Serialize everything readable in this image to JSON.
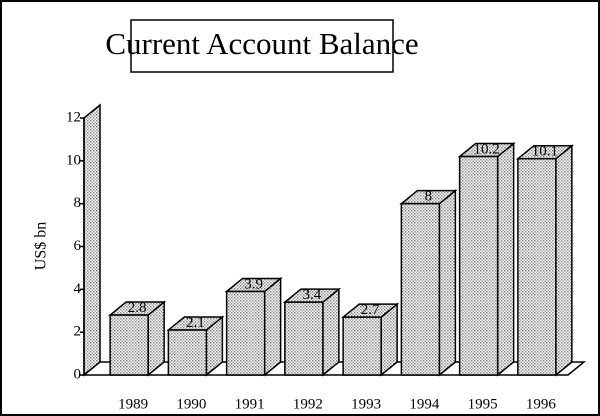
{
  "chart_data": {
    "type": "bar3d",
    "title": "Current Account Balance",
    "y_label": "US$ bn",
    "categories": [
      "1989",
      "1990",
      "1991",
      "1992",
      "1993",
      "1994",
      "1995",
      "1996"
    ],
    "values": [
      2.8,
      2.1,
      3.9,
      3.4,
      2.7,
      8,
      10.2,
      10.1
    ],
    "ylim": [
      0,
      12
    ],
    "yticks": [
      0,
      2,
      4,
      6,
      8,
      10,
      12
    ],
    "color": "#d8d8d8"
  }
}
